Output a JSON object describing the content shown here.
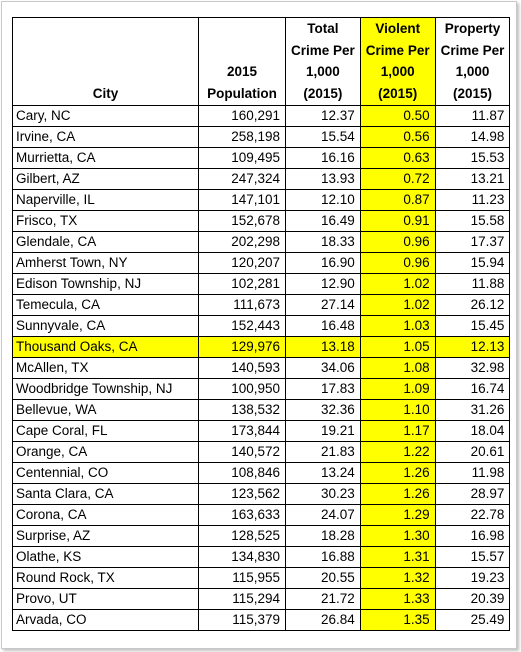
{
  "highlight_color": "#ffff00",
  "headers": {
    "city": [
      "City"
    ],
    "population": [
      "2015",
      "Population"
    ],
    "total_crime": [
      "Total",
      "Crime Per",
      "1,000",
      "(2015)"
    ],
    "violent_crime": [
      "Violent",
      "Crime Per",
      "1,000",
      "(2015)"
    ],
    "property_crime": [
      "Property",
      "Crime Per",
      "1,000",
      "(2015)"
    ]
  },
  "highlighted_column": "violent_crime",
  "highlighted_row": "Thousand Oaks, CA",
  "rows": [
    {
      "city": "Cary, NC",
      "population": "160,291",
      "total": "12.37",
      "violent": "0.50",
      "property": "11.87"
    },
    {
      "city": "Irvine, CA",
      "population": "258,198",
      "total": "15.54",
      "violent": "0.56",
      "property": "14.98"
    },
    {
      "city": "Murrietta, CA",
      "population": "109,495",
      "total": "16.16",
      "violent": "0.63",
      "property": "15.53"
    },
    {
      "city": "Gilbert, AZ",
      "population": "247,324",
      "total": "13.93",
      "violent": "0.72",
      "property": "13.21"
    },
    {
      "city": "Naperville, IL",
      "population": "147,101",
      "total": "12.10",
      "violent": "0.87",
      "property": "11.23"
    },
    {
      "city": "Frisco, TX",
      "population": "152,678",
      "total": "16.49",
      "violent": "0.91",
      "property": "15.58"
    },
    {
      "city": "Glendale, CA",
      "population": "202,298",
      "total": "18.33",
      "violent": "0.96",
      "property": "17.37"
    },
    {
      "city": "Amherst Town, NY",
      "population": "120,207",
      "total": "16.90",
      "violent": "0.96",
      "property": "15.94"
    },
    {
      "city": "Edison Township, NJ",
      "population": "102,281",
      "total": "12.90",
      "violent": "1.02",
      "property": "11.88"
    },
    {
      "city": "Temecula, CA",
      "population": "111,673",
      "total": "27.14",
      "violent": "1.02",
      "property": "26.12"
    },
    {
      "city": "Sunnyvale, CA",
      "population": "152,443",
      "total": "16.48",
      "violent": "1.03",
      "property": "15.45"
    },
    {
      "city": "Thousand Oaks, CA",
      "population": "129,976",
      "total": "13.18",
      "violent": "1.05",
      "property": "12.13"
    },
    {
      "city": "McAllen, TX",
      "population": "140,593",
      "total": "34.06",
      "violent": "1.08",
      "property": "32.98"
    },
    {
      "city": "Woodbridge Township, NJ",
      "population": "100,950",
      "total": "17.83",
      "violent": "1.09",
      "property": "16.74"
    },
    {
      "city": "Bellevue, WA",
      "population": "138,532",
      "total": "32.36",
      "violent": "1.10",
      "property": "31.26"
    },
    {
      "city": "Cape Coral, FL",
      "population": "173,844",
      "total": "19.21",
      "violent": "1.17",
      "property": "18.04"
    },
    {
      "city": "Orange, CA",
      "population": "140,572",
      "total": "21.83",
      "violent": "1.22",
      "property": "20.61"
    },
    {
      "city": "Centennial, CO",
      "population": "108,846",
      "total": "13.24",
      "violent": "1.26",
      "property": "11.98"
    },
    {
      "city": "Santa Clara, CA",
      "population": "123,562",
      "total": "30.23",
      "violent": "1.26",
      "property": "28.97"
    },
    {
      "city": "Corona, CA",
      "population": "163,633",
      "total": "24.07",
      "violent": "1.29",
      "property": "22.78"
    },
    {
      "city": "Surprise, AZ",
      "population": "128,525",
      "total": "18.28",
      "violent": "1.30",
      "property": "16.98"
    },
    {
      "city": "Olathe, KS",
      "population": "134,830",
      "total": "16.88",
      "violent": "1.31",
      "property": "15.57"
    },
    {
      "city": "Round Rock, TX",
      "population": "115,955",
      "total": "20.55",
      "violent": "1.32",
      "property": "19.23"
    },
    {
      "city": "Provo, UT",
      "population": "115,294",
      "total": "21.72",
      "violent": "1.33",
      "property": "20.39"
    },
    {
      "city": "Arvada, CO",
      "population": "115,379",
      "total": "26.84",
      "violent": "1.35",
      "property": "25.49"
    }
  ]
}
